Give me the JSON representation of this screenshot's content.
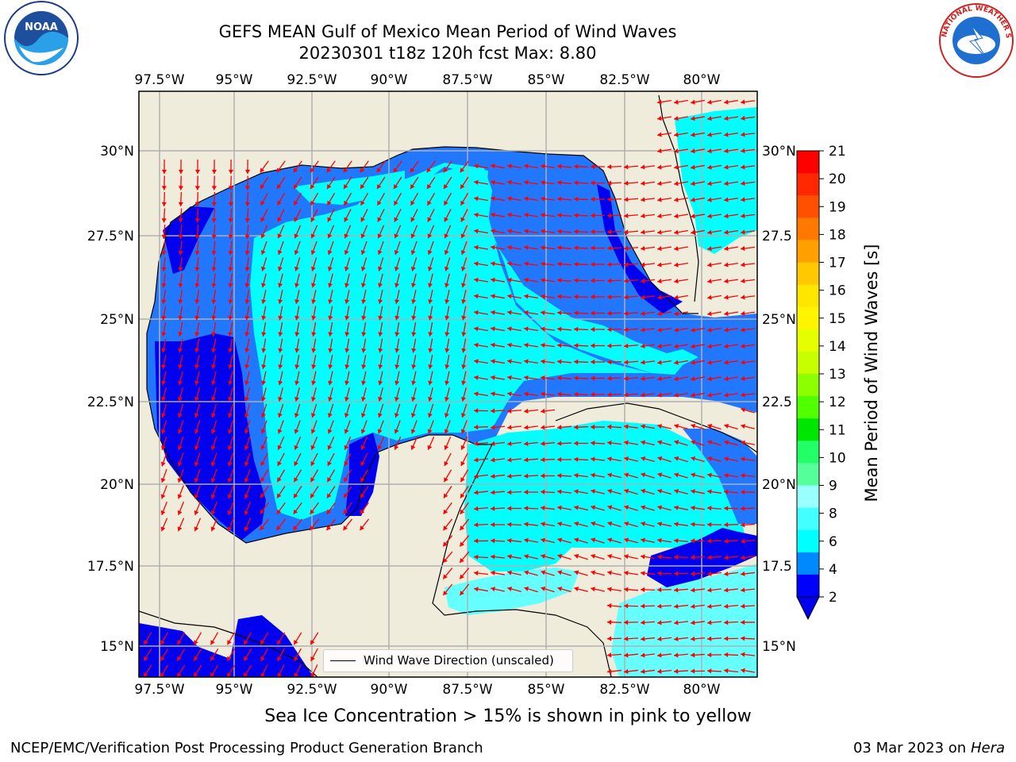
{
  "header": {
    "title_line1": "GEFS MEAN Gulf of Mexico Mean Period of Wind Waves",
    "title_line2": "20230301 t18z 120h fcst   Max: 8.80"
  },
  "logos": {
    "left": "NOAA",
    "right": "NATIONAL WEATHER SERVICE"
  },
  "map": {
    "lon_labels": [
      "97.5°W",
      "95°W",
      "92.5°W",
      "90°W",
      "87.5°W",
      "85°W",
      "82.5°W",
      "80°W"
    ],
    "lat_labels_left": [
      "30°N",
      "27.5°N",
      "25°N",
      "22.5°N",
      "20°N",
      "17.5°N",
      "15°N"
    ],
    "lat_labels_right": [
      "30°N",
      "27.5",
      "25°N",
      "22.5",
      "20°N",
      "17.5",
      "15°N"
    ],
    "legend_label": "Wind Wave Direction (unscaled)",
    "colors": {
      "land": "#efecdc",
      "band_2_4": "#0000ee",
      "band_4_6": "#2277ff",
      "band_6_8": "#00ffff",
      "band_8_9": "#66ffff",
      "arrow": "#ff0000",
      "grid": "#b0b0b0"
    }
  },
  "colorbar": {
    "label": "Mean Period of Wind Waves [s]",
    "ticks": [
      "21",
      "20",
      "19",
      "18",
      "17",
      "16",
      "15",
      "14",
      "13",
      "12",
      "11",
      "10",
      "9",
      "8",
      "6",
      "4",
      "2"
    ],
    "colors": [
      "#ff0000",
      "#ff2800",
      "#ff5000",
      "#ff7800",
      "#ff9f00",
      "#ffc800",
      "#ffe600",
      "#fff500",
      "#e6ff00",
      "#c8ff00",
      "#8cff00",
      "#50ff00",
      "#00e600",
      "#22ff66",
      "#55ff99",
      "#99ffff",
      "#44ffff",
      "#00ffff",
      "#0088ff",
      "#0000ff"
    ]
  },
  "footer": {
    "caption": "Sea Ice Concentration > 15% is shown in pink to yellow",
    "credit": "NCEP/EMC/Verification Post Processing Product Generation Branch",
    "date": "03 Mar 2023 on",
    "host": "Hera"
  }
}
